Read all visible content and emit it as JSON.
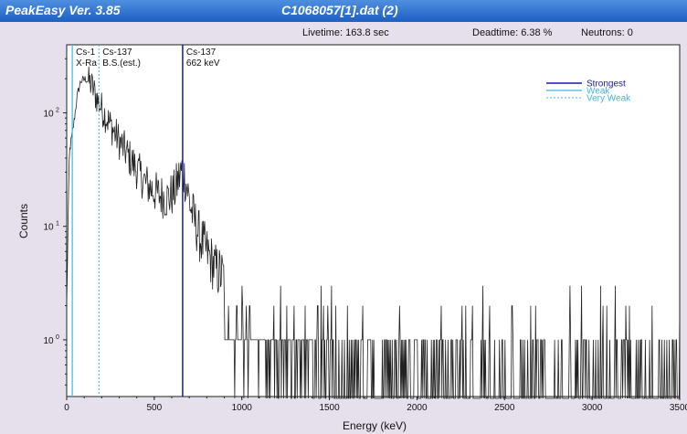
{
  "window": {
    "app_title": "PeakEasy Ver. 3.85",
    "file_title": "C1068057[1].dat (2)"
  },
  "status": {
    "livetime": "Livetime: 163.8 sec",
    "deadtime": "Deadtime: 6.38 %",
    "neutrons": "Neutrons: 0"
  },
  "colors": {
    "strongest": "#1a1aa8",
    "weak": "#3fb6e6",
    "very_weak": "#3fb6e6",
    "spectrum": "#222222"
  },
  "chart_data": {
    "type": "line",
    "xlabel": "Energy (keV)",
    "ylabel": "Counts",
    "xlim": [
      0,
      3500
    ],
    "ylim_log10": [
      -0.5,
      2.6
    ],
    "y_scale": "log",
    "x_ticks": [
      "0",
      "500",
      "1000",
      "1500",
      "2000",
      "2500",
      "3000",
      "3500"
    ],
    "y_ticks": [
      {
        "base": "10",
        "exp": "0"
      },
      {
        "base": "10",
        "exp": "1"
      },
      {
        "base": "10",
        "exp": "2"
      }
    ],
    "legend": {
      "placement": "top-right",
      "entries": [
        {
          "label": "Strongest",
          "style": "strongest"
        },
        {
          "label": "Weak",
          "style": "weak"
        },
        {
          "label": "Very Weak",
          "style": "very_weak"
        }
      ]
    },
    "peak_markers": [
      {
        "energy": 32,
        "line1": "Cs-1",
        "line2": "X-Ra",
        "style": "weak"
      },
      {
        "energy": 184,
        "line1": "Cs-137",
        "line2": "B.S.(est.)",
        "style": "very_weak"
      },
      {
        "energy": 662,
        "line1": "Cs-137",
        "line2": "662 keV",
        "style": "strongest"
      }
    ],
    "spectrum_envelope": [
      [
        0,
        0.3
      ],
      [
        15,
        1.65
      ],
      [
        25,
        1.75
      ],
      [
        40,
        1.9
      ],
      [
        60,
        2.15
      ],
      [
        80,
        2.28
      ],
      [
        110,
        2.3
      ],
      [
        140,
        2.25
      ],
      [
        180,
        2.1
      ],
      [
        230,
        1.95
      ],
      [
        300,
        1.75
      ],
      [
        380,
        1.55
      ],
      [
        450,
        1.38
      ],
      [
        520,
        1.28
      ],
      [
        580,
        1.25
      ],
      [
        615,
        1.3
      ],
      [
        640,
        1.42
      ],
      [
        660,
        1.5
      ],
      [
        680,
        1.4
      ],
      [
        710,
        1.15
      ],
      [
        760,
        0.9
      ],
      [
        850,
        0.62
      ],
      [
        950,
        0.48
      ],
      [
        1100,
        0.34
      ],
      [
        1300,
        0.22
      ],
      [
        1450,
        0.15
      ],
      [
        1500,
        0.18
      ],
      [
        1550,
        0.08
      ],
      [
        1700,
        0.02
      ],
      [
        2000,
        -0.05
      ],
      [
        2500,
        -0.12
      ],
      [
        3000,
        -0.18
      ],
      [
        3500,
        -0.25
      ]
    ]
  }
}
